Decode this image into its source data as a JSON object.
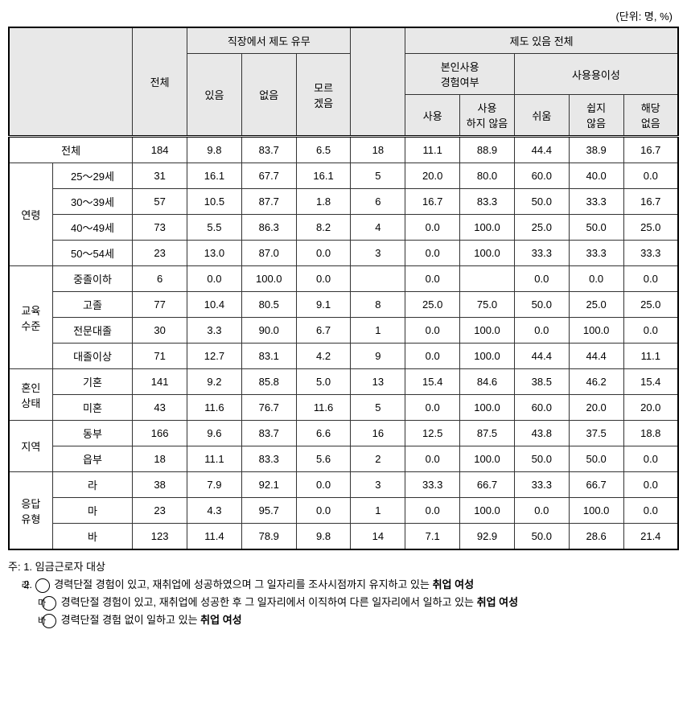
{
  "unit_text": "(단위: 명, %)",
  "headers": {
    "total": "전체",
    "workplace_system": "직장에서 제도 유무",
    "has": "있음",
    "no": "없음",
    "dunno": "모르\n겠음",
    "system_has_total": "제도 있음 전체",
    "self_use": "본인사용\n경험여부",
    "ease": "사용용이성",
    "used": "사용",
    "not_used": "사용\n하지 않음",
    "easy": "쉬움",
    "not_easy": "쉽지\n않음",
    "na": "해당\n없음"
  },
  "categories": {
    "age": "연령",
    "edu": "교육\n수준",
    "marital": "혼인\n상태",
    "region": "지역",
    "resp_type": "응답\n유형"
  },
  "rows": [
    {
      "cat": "total",
      "label": "전체",
      "cells": [
        "184",
        "9.8",
        "83.7",
        "6.5",
        "18",
        "11.1",
        "88.9",
        "44.4",
        "38.9",
        "16.7"
      ]
    },
    {
      "cat": "age",
      "label": "25～29세",
      "cells": [
        "31",
        "16.1",
        "67.7",
        "16.1",
        "5",
        "20.0",
        "80.0",
        "60.0",
        "40.0",
        "0.0"
      ]
    },
    {
      "cat": "age",
      "label": "30～39세",
      "cells": [
        "57",
        "10.5",
        "87.7",
        "1.8",
        "6",
        "16.7",
        "83.3",
        "50.0",
        "33.3",
        "16.7"
      ]
    },
    {
      "cat": "age",
      "label": "40～49세",
      "cells": [
        "73",
        "5.5",
        "86.3",
        "8.2",
        "4",
        "0.0",
        "100.0",
        "25.0",
        "50.0",
        "25.0"
      ]
    },
    {
      "cat": "age",
      "label": "50～54세",
      "cells": [
        "23",
        "13.0",
        "87.0",
        "0.0",
        "3",
        "0.0",
        "100.0",
        "33.3",
        "33.3",
        "33.3"
      ]
    },
    {
      "cat": "edu",
      "label": "중졸이하",
      "cells": [
        "6",
        "0.0",
        "100.0",
        "0.0",
        "",
        "0.0",
        "",
        "0.0",
        "0.0",
        "0.0"
      ]
    },
    {
      "cat": "edu",
      "label": "고졸",
      "cells": [
        "77",
        "10.4",
        "80.5",
        "9.1",
        "8",
        "25.0",
        "75.0",
        "50.0",
        "25.0",
        "25.0"
      ]
    },
    {
      "cat": "edu",
      "label": "전문대졸",
      "cells": [
        "30",
        "3.3",
        "90.0",
        "6.7",
        "1",
        "0.0",
        "100.0",
        "0.0",
        "100.0",
        "0.0"
      ]
    },
    {
      "cat": "edu",
      "label": "대졸이상",
      "cells": [
        "71",
        "12.7",
        "83.1",
        "4.2",
        "9",
        "0.0",
        "100.0",
        "44.4",
        "44.4",
        "11.1"
      ]
    },
    {
      "cat": "marital",
      "label": "기혼",
      "cells": [
        "141",
        "9.2",
        "85.8",
        "5.0",
        "13",
        "15.4",
        "84.6",
        "38.5",
        "46.2",
        "15.4"
      ]
    },
    {
      "cat": "marital",
      "label": "미혼",
      "cells": [
        "43",
        "11.6",
        "76.7",
        "11.6",
        "5",
        "0.0",
        "100.0",
        "60.0",
        "20.0",
        "20.0"
      ]
    },
    {
      "cat": "region",
      "label": "동부",
      "cells": [
        "166",
        "9.6",
        "83.7",
        "6.6",
        "16",
        "12.5",
        "87.5",
        "43.8",
        "37.5",
        "18.8"
      ]
    },
    {
      "cat": "region",
      "label": "읍부",
      "cells": [
        "18",
        "11.1",
        "83.3",
        "5.6",
        "2",
        "0.0",
        "100.0",
        "50.0",
        "50.0",
        "0.0"
      ]
    },
    {
      "cat": "resp_type",
      "label": "라",
      "cells": [
        "38",
        "7.9",
        "92.1",
        "0.0",
        "3",
        "33.3",
        "66.7",
        "33.3",
        "66.7",
        "0.0"
      ]
    },
    {
      "cat": "resp_type",
      "label": "마",
      "cells": [
        "23",
        "4.3",
        "95.7",
        "0.0",
        "1",
        "0.0",
        "100.0",
        "0.0",
        "100.0",
        "0.0"
      ]
    },
    {
      "cat": "resp_type",
      "label": "바",
      "cells": [
        "123",
        "11.4",
        "78.9",
        "9.8",
        "14",
        "7.1",
        "92.9",
        "50.0",
        "28.6",
        "21.4"
      ]
    }
  ],
  "notes": {
    "prefix": "주:",
    "n1": "1. 임금근로자 대상",
    "n2_prefix": "2.",
    "n2a_sym": "라",
    "n2a": "경력단절 경험이 있고, 재취업에 성공하였으며 그 일자리를 조사시점까지 유지하고 있는 ",
    "n2a_bold": "취업 여성",
    "n2b_sym": "마",
    "n2b": "경력단절 경험이 있고, 재취업에 성공한 후 그 일자리에서 이직하여 다른 일자리에서 일하고 있는 ",
    "n2b_bold": "취업 여성",
    "n2c_sym": "바",
    "n2c": "경력단절 경험 없이 일하고 있는 ",
    "n2c_bold": "취업 여성"
  }
}
